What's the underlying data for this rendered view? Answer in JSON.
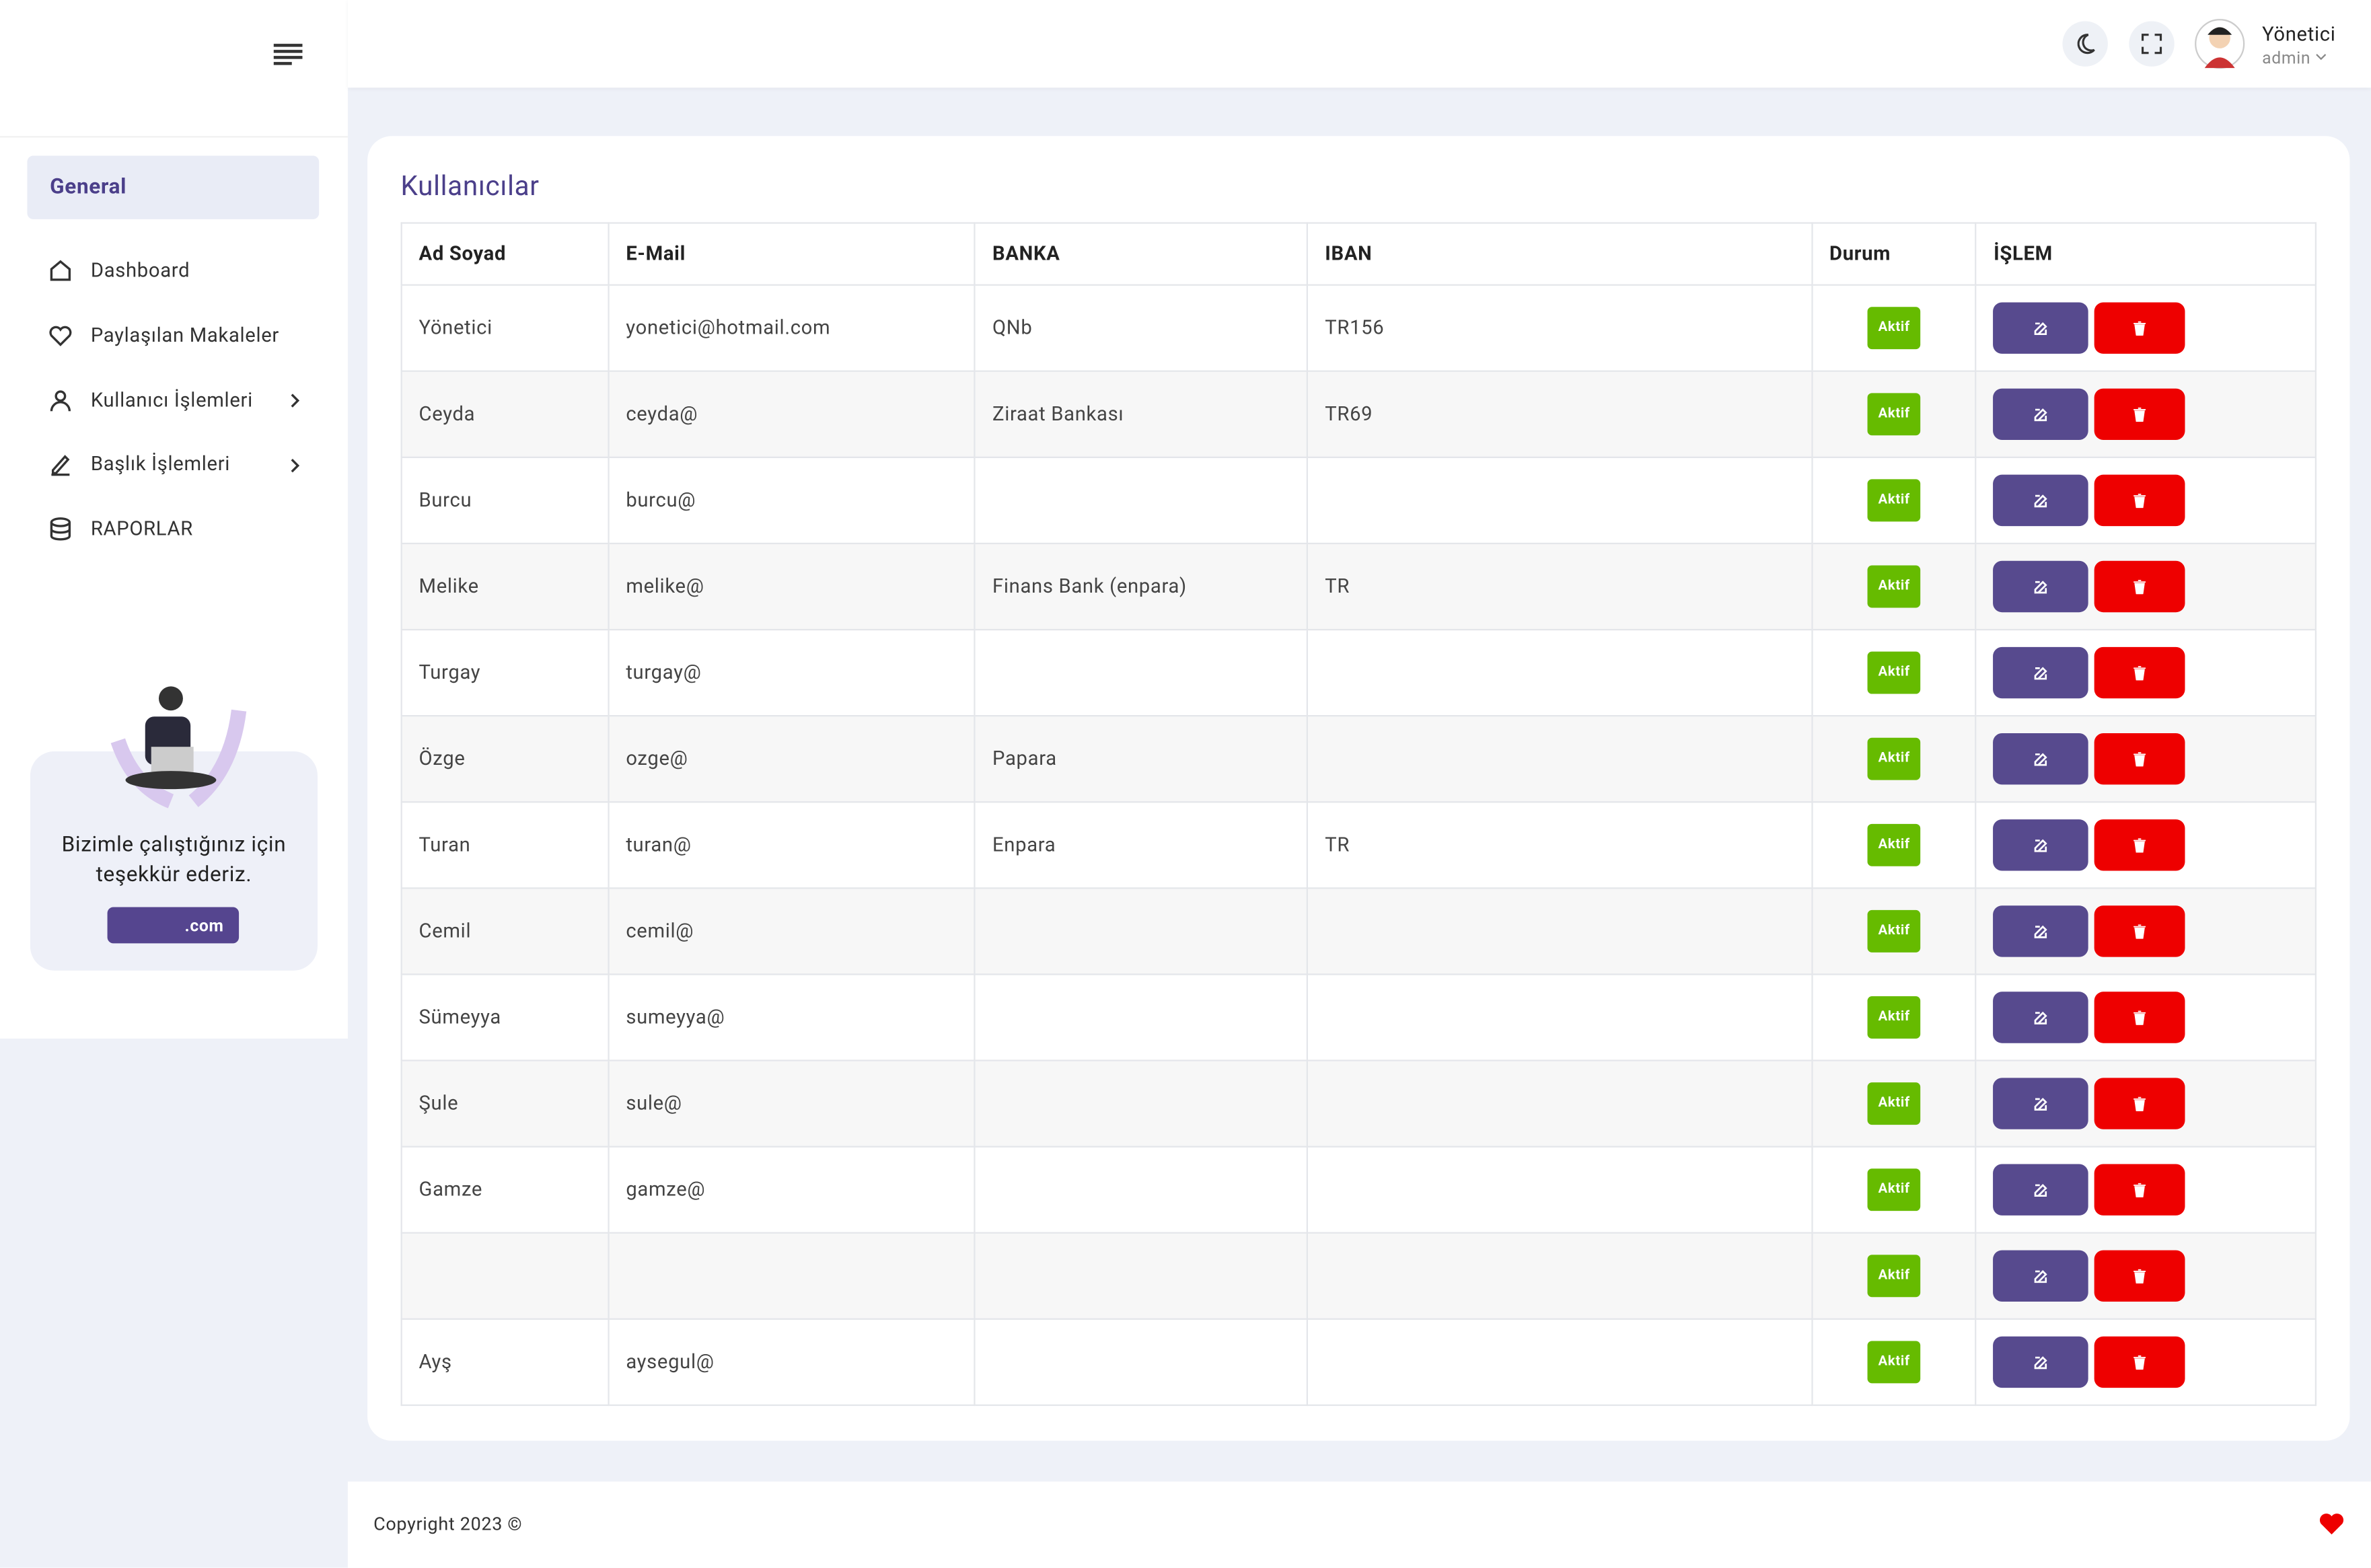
{
  "header": {
    "user_name": "Yönetici",
    "user_role": "admin"
  },
  "sidebar": {
    "section": "General",
    "menu": [
      "Dashboard",
      "Paylaşılan Makaleler",
      "Kullanıcı İşlemleri",
      "Başlık İşlemleri",
      "RAPORLAR"
    ],
    "promo_text": "Bizimle çalıştığınız için teşekkür ederiz.",
    "promo_button": ".com"
  },
  "content": {
    "title": "Kullanıcılar",
    "table": {
      "columns": [
        "Ad Soyad",
        "E-Mail",
        "BANKA",
        "IBAN",
        "Durum",
        "İŞLEM"
      ],
      "rows": [
        [
          "Yönetici",
          "yonetici@hotmail.com",
          "QNb",
          "TR156",
          "Aktif"
        ],
        [
          "Ceyda",
          "ceyda@",
          "Ziraat Bankası",
          "TR69",
          "Aktif"
        ],
        [
          "Burcu",
          "burcu@",
          null,
          null,
          "Aktif"
        ],
        [
          "Melike",
          "melike@",
          "Finans Bank (enpara)",
          "TR",
          "Aktif"
        ],
        [
          "Turgay",
          "turgay@",
          null,
          null,
          "Aktif"
        ],
        [
          "Özge",
          "ozge@",
          "Papara",
          null,
          "Aktif"
        ],
        [
          "Turan",
          "turan@",
          "Enpara",
          "TR",
          "Aktif"
        ],
        [
          "Cemil",
          "cemil@",
          null,
          null,
          "Aktif"
        ],
        [
          "Sümeyya",
          "sumeyya@",
          null,
          null,
          "Aktif"
        ],
        [
          "Şule",
          "sule@",
          null,
          null,
          "Aktif"
        ],
        [
          "Gamze",
          "gamze@",
          null,
          null,
          "Aktif"
        ],
        [
          null,
          null,
          null,
          null,
          "Aktif"
        ],
        [
          "Ayş",
          "aysegul@",
          null,
          null,
          "Aktif"
        ]
      ]
    }
  },
  "footer": {
    "copyright": "Copyright 2023 ©"
  }
}
